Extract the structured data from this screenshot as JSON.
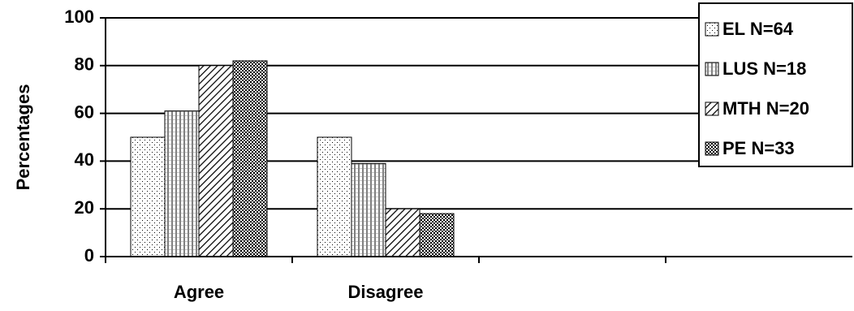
{
  "chart_data": {
    "type": "bar",
    "ylabel": "Percentages",
    "categories": [
      "Agree",
      "Disagree",
      null,
      null
    ],
    "series": [
      {
        "name": "EL N=64",
        "color": "#000000",
        "pattern": "dots",
        "values": [
          50,
          50,
          null,
          null
        ]
      },
      {
        "name": "LUS N=18",
        "color": "#000000",
        "pattern": "vertical",
        "values": [
          61,
          39,
          null,
          null
        ]
      },
      {
        "name": "MTH N=20",
        "color": "#000000",
        "pattern": "diagonal",
        "values": [
          80,
          20,
          null,
          null
        ]
      },
      {
        "name": "PE N=33",
        "color": "#000000",
        "pattern": "checker",
        "values": [
          82,
          18,
          null,
          null
        ]
      }
    ],
    "ylim": [
      0,
      100
    ],
    "yticks": [
      0,
      20,
      40,
      60,
      80,
      100
    ],
    "grid": true,
    "legend": "upper right"
  }
}
